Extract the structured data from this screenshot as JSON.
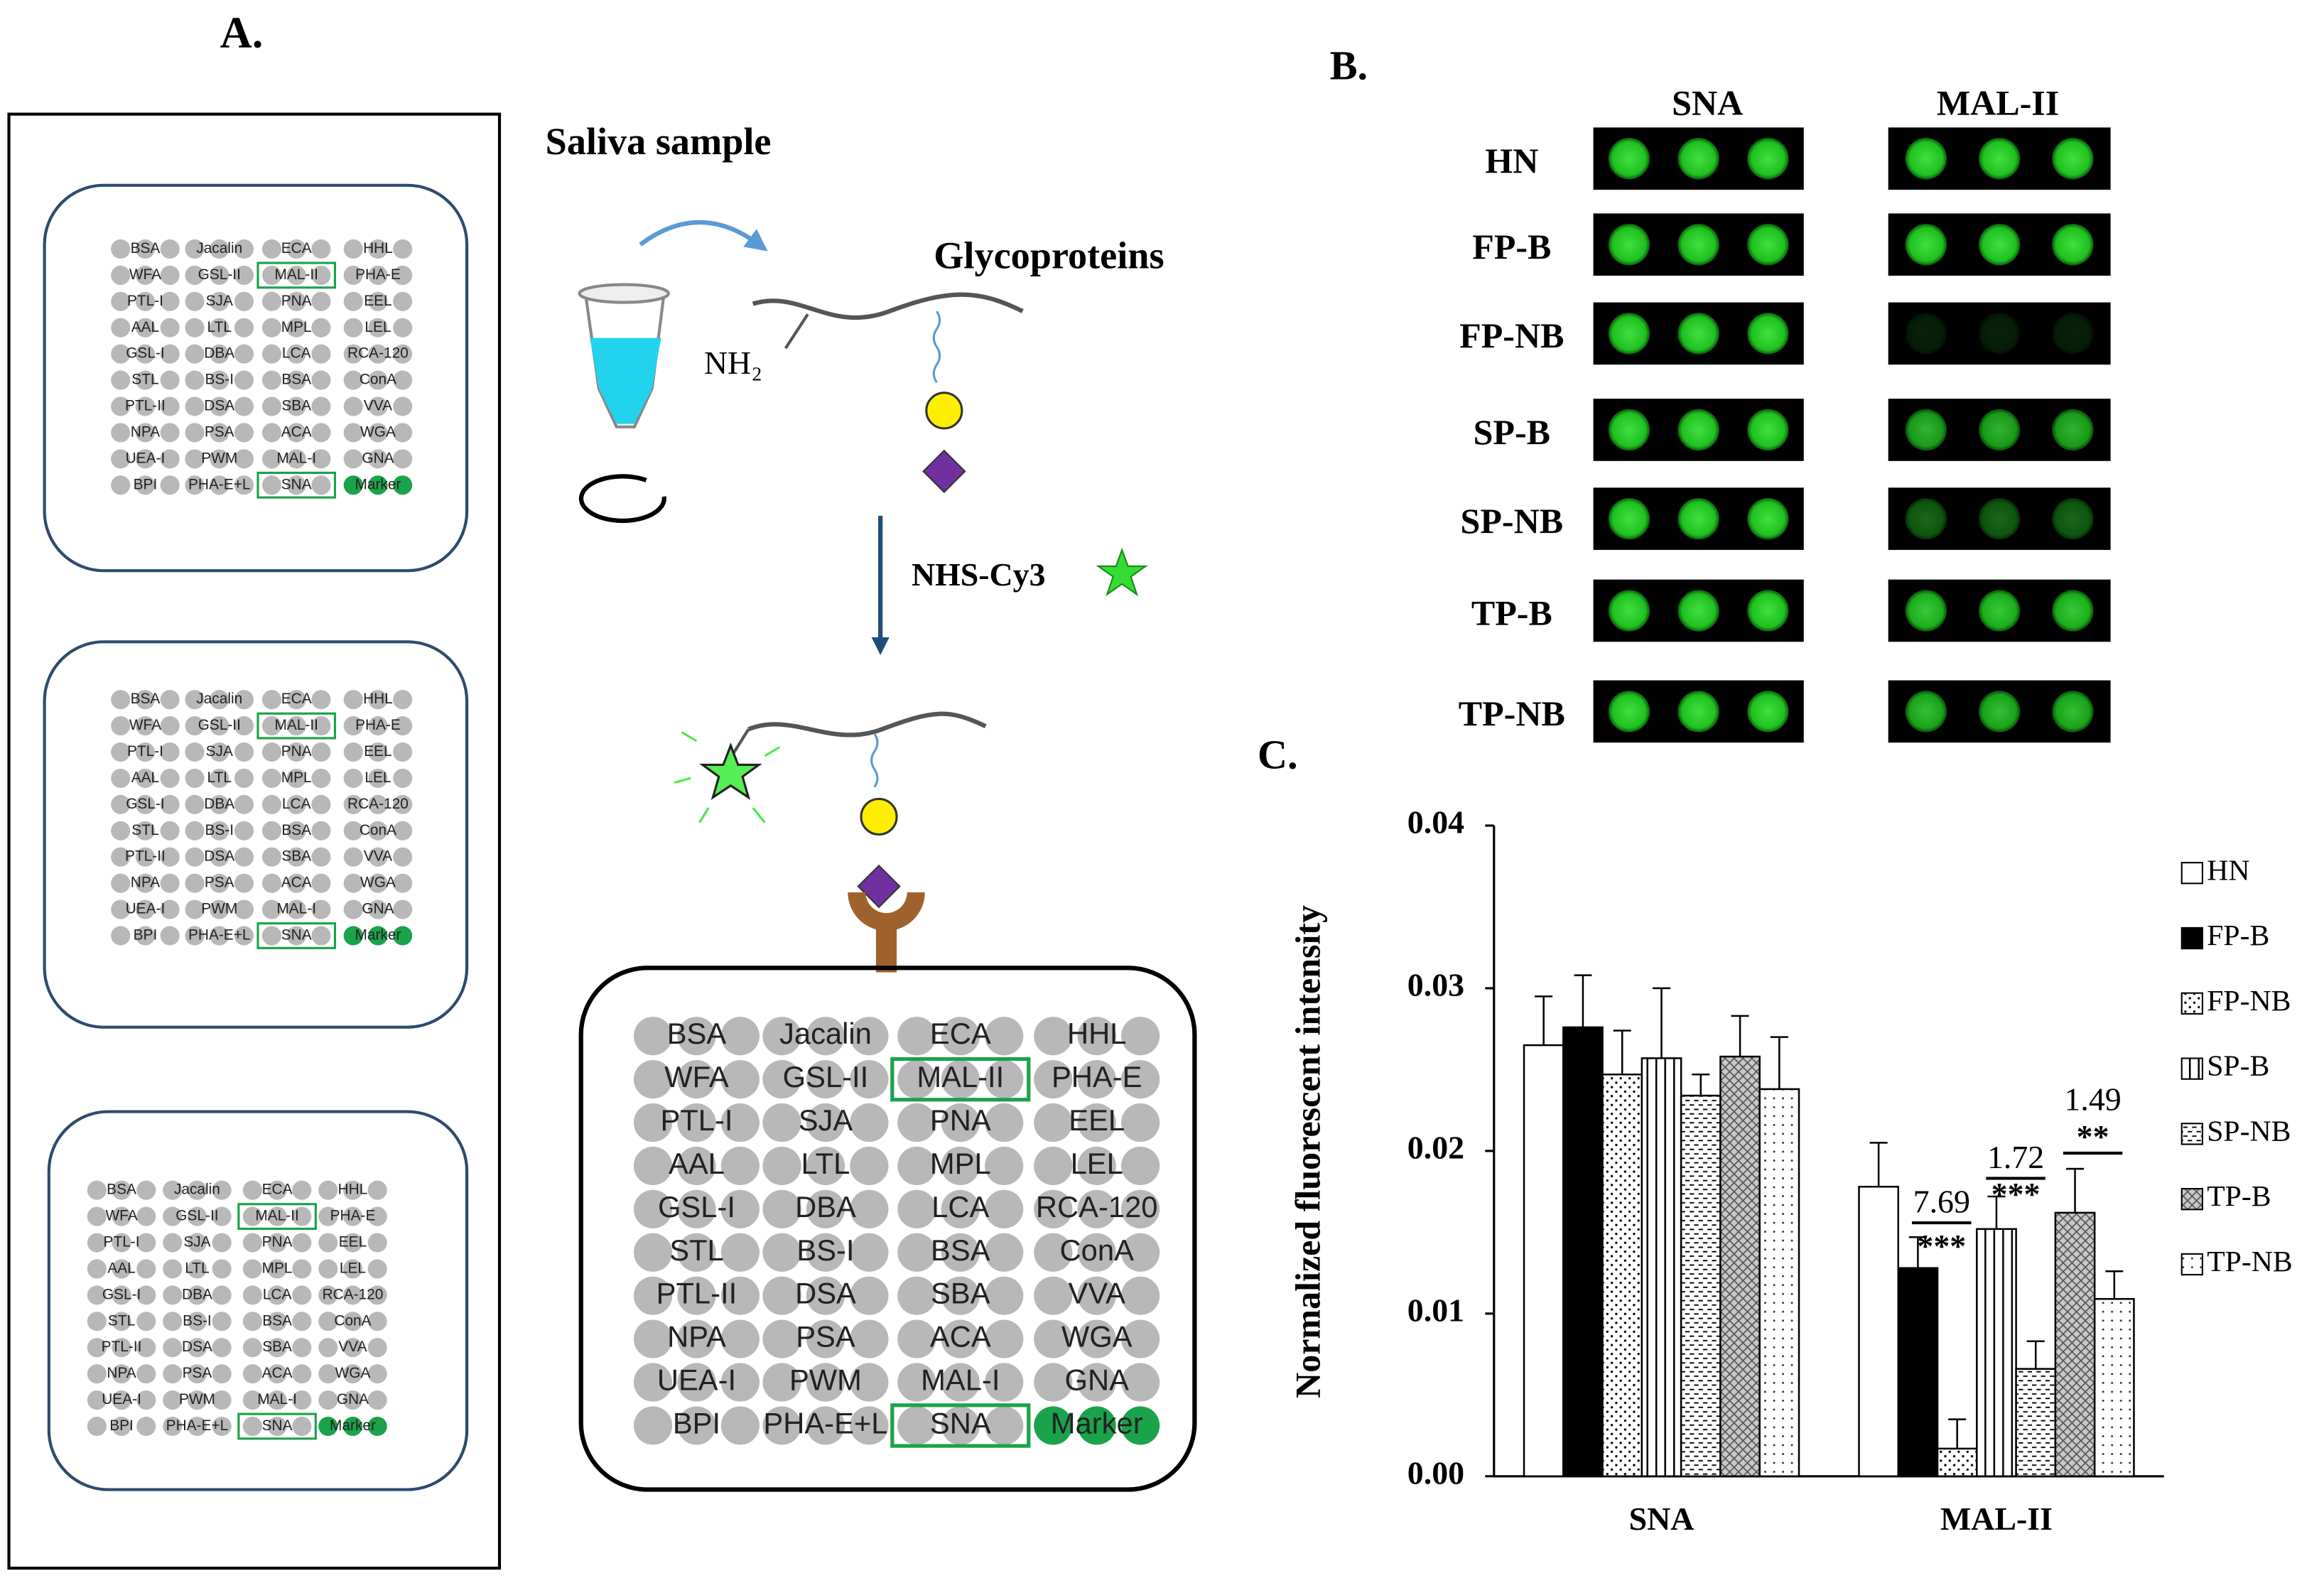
{
  "panel_a": {
    "label": "A.",
    "sample": "Saliva sample",
    "product": "Glycoproteins",
    "amine": "NH₂",
    "reagent": "NHS-Cy3",
    "lectins": [
      [
        "BSA",
        "Jacalin",
        "ECA",
        "HHL"
      ],
      [
        "WFA",
        "GSL-II",
        "MAL-II",
        "PHA-E"
      ],
      [
        "PTL-I",
        "SJA",
        "PNA",
        "EEL"
      ],
      [
        "AAL",
        "LTL",
        "MPL",
        "LEL"
      ],
      [
        "GSL-I",
        "DBA",
        "LCA",
        "RCA-120"
      ],
      [
        "STL",
        "BS-I",
        "BSA",
        "ConA"
      ],
      [
        "PTL-II",
        "DSA",
        "SBA",
        "VVA"
      ],
      [
        "NPA",
        "PSA",
        "ACA",
        "WGA"
      ],
      [
        "UEA-I",
        "PWM",
        "MAL-I",
        "GNA"
      ],
      [
        "BPI",
        "PHA-E+L",
        "SNA",
        "Marker"
      ]
    ]
  },
  "panel_b": {
    "label": "B.",
    "columns": [
      "SNA",
      "MAL-II"
    ],
    "rows": [
      "HN",
      "FP-B",
      "FP-NB",
      "SP-B",
      "SP-NB",
      "TP-B",
      "TP-NB"
    ]
  },
  "chart_data": {
    "type": "bar",
    "label": "C.",
    "ylabel": "Normalized  fluorescent intensity",
    "categories": [
      "SNA",
      "MAL-II"
    ],
    "ylim": [
      0,
      0.04
    ],
    "yticks": [
      {
        "value": 0,
        "label": "0.00"
      },
      {
        "value": 0.01,
        "label": "0.01"
      },
      {
        "value": 0.02,
        "label": "0.02"
      },
      {
        "value": 0.03,
        "label": "0.03"
      },
      {
        "value": 0.04,
        "label": "0.04"
      }
    ],
    "legend": "right",
    "series": [
      {
        "name": "HN",
        "color": "#ffffff",
        "pattern": "none",
        "values": [
          0.0265,
          0.0178
        ],
        "errors": [
          0.003,
          0.0027
        ]
      },
      {
        "name": "FP-B",
        "color": "#000000",
        "pattern": "none",
        "values": [
          0.0276,
          0.0128
        ],
        "errors": [
          0.0032,
          0.0019
        ]
      },
      {
        "name": "FP-NB",
        "color": "#ffffff",
        "pattern": "dots",
        "values": [
          0.0247,
          0.0017
        ],
        "errors": [
          0.0027,
          0.0018
        ]
      },
      {
        "name": "SP-B",
        "color": "#ffffff",
        "pattern": "vertical",
        "values": [
          0.0257,
          0.0152
        ],
        "errors": [
          0.0043,
          0.002
        ]
      },
      {
        "name": "SP-NB",
        "color": "#ffffff",
        "pattern": "dashes",
        "values": [
          0.0234,
          0.0066
        ],
        "errors": [
          0.0013,
          0.0017
        ]
      },
      {
        "name": "TP-B",
        "color": "#c8c8c8",
        "pattern": "crosshatch",
        "values": [
          0.0258,
          0.0162
        ],
        "errors": [
          0.0025,
          0.0027
        ]
      },
      {
        "name": "TP-NB",
        "color": "#ffffff",
        "pattern": "sparse-dots",
        "values": [
          0.0238,
          0.0109
        ],
        "errors": [
          0.0032,
          0.0017
        ]
      }
    ],
    "annotations": [
      {
        "text": "7.69",
        "stars": "***"
      },
      {
        "text": "1.72",
        "stars": "***"
      },
      {
        "text": "1.49",
        "stars": "**"
      }
    ]
  }
}
